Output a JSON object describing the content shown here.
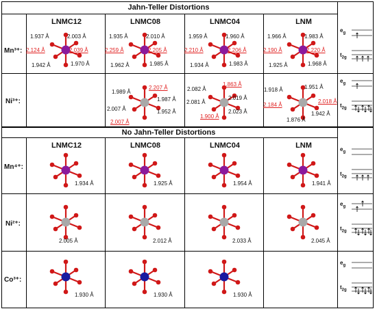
{
  "sections": {
    "jt": "Jahn-Teller Distortions",
    "nojt": "No Jahn-Teller Distortions"
  },
  "columns": [
    "LNMC12",
    "LNMC08",
    "LNMC04",
    "LNM"
  ],
  "rows": {
    "mn3": "Mn³⁺:",
    "ni3": "Ni³⁺:",
    "mn4": "Mn⁴⁺:",
    "ni2": "Ni²⁺:",
    "co3": "Co³⁺:"
  },
  "orbitals": {
    "eg": "e",
    "eg_sub": "g",
    "t2g": "t",
    "t2g_sub": "2g"
  },
  "jt_bonds": {
    "mn3": [
      [
        "1.937 Å",
        "2.003 Å",
        "2.124 Å",
        "2.039 Å",
        "1.942 Å",
        "1.970 Å"
      ],
      [
        "1.935 Å",
        "2.010 Å",
        "2.259 Å",
        "2.205 Å",
        "1.962 Å",
        "1.985 Å"
      ],
      [
        "1.959 Å",
        "1.960 Å",
        "2.210 Å",
        "2.206 Å",
        "1.934 Å",
        "1.983 Å"
      ],
      [
        "1.966 Å",
        "1.983 Å",
        "2.190 Å",
        "2.220 Å",
        "1.925 Å",
        "1.968 Å"
      ]
    ],
    "ni3": [
      null,
      [
        "1.989 Å",
        "2.207 Å",
        "1.987 Å",
        "2.007 Å",
        "1.952 Å",
        "2.007 Å"
      ],
      [
        "2.082 Å",
        "1.863 Å",
        "2.019 Å",
        "2.081 Å",
        "2.023 Å",
        "1.900 Å"
      ],
      [
        "1.918 Å",
        "1.951 Å",
        "2.018 Å",
        "2.184 Å",
        "1.942 Å",
        "1.876 Å"
      ]
    ]
  },
  "nojt_bonds": {
    "mn4": [
      "1.934 Å",
      "1.925 Å",
      "1.954 Å",
      "1.941 Å"
    ],
    "ni2": [
      "2.005 Å",
      "2.012 Å",
      "2.033 Å",
      "2.045 Å"
    ],
    "co3": [
      "1.930 Å",
      "1.930 Å",
      "1.930 Å"
    ]
  },
  "colors": {
    "mn": "#8b1a9c",
    "ni": "#a9a9a9",
    "co": "#1a1aa0",
    "oxygen": "#d01818",
    "highlight": "#e02020"
  }
}
